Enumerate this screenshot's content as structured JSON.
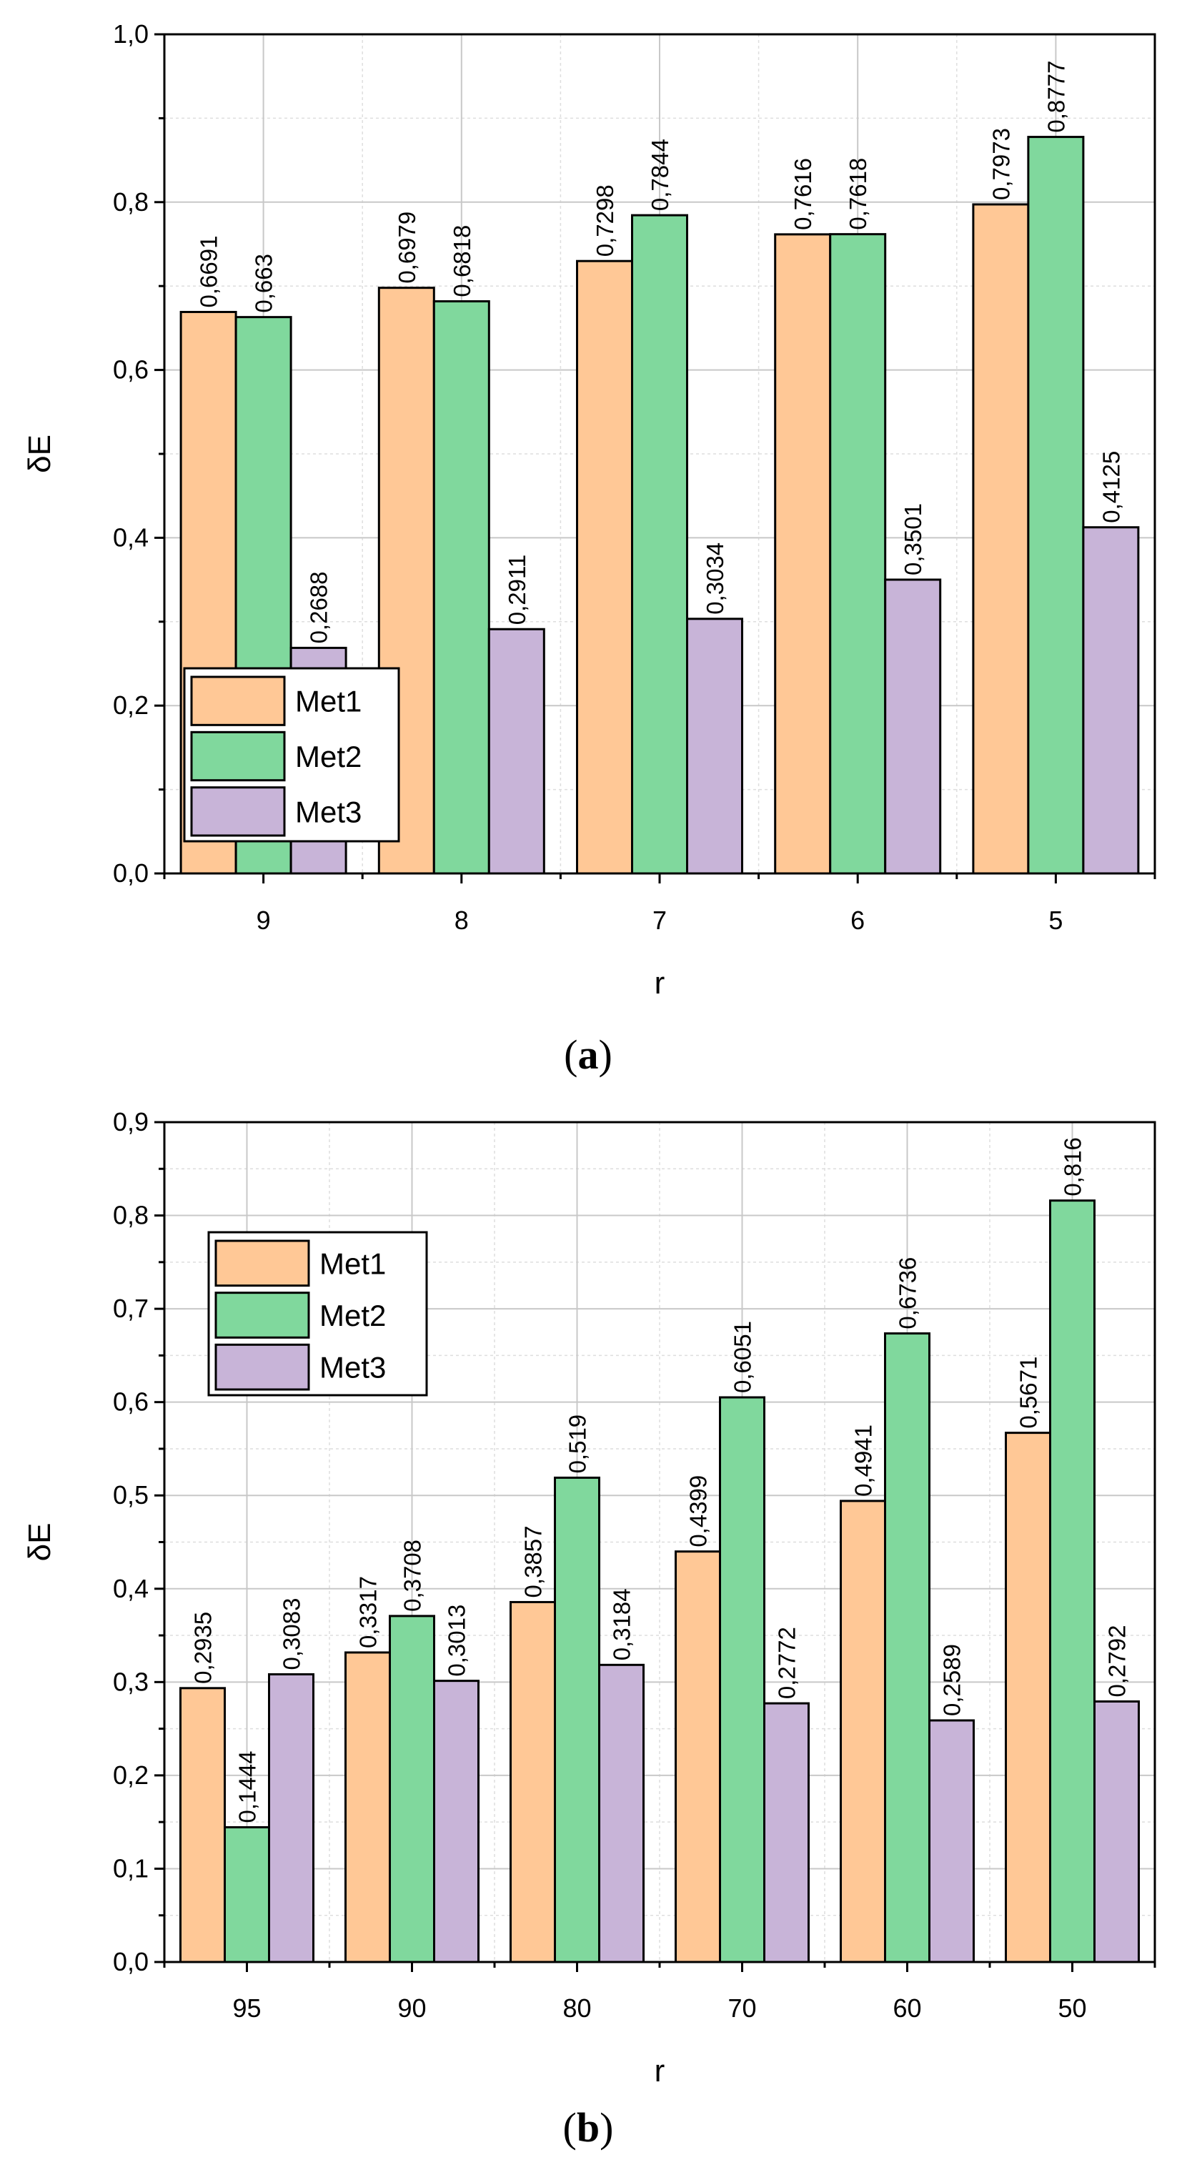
{
  "colors": {
    "Met1": "#ffc896",
    "Met2": "#80d89d",
    "Met3": "#c8b4d8",
    "grid": "#c8c8c8"
  },
  "chart_data": [
    {
      "type": "bar",
      "panel_label": [
        "(",
        "a",
        ")"
      ],
      "categories": [
        "9",
        "8",
        "7",
        "6",
        "5"
      ],
      "series": [
        {
          "name": "Met1",
          "values": [
            0.6691,
            0.6979,
            0.7298,
            0.7616,
            0.7973
          ],
          "labels": [
            "0,6691",
            "0,6979",
            "0,7298",
            "0,7616",
            "0,7973"
          ]
        },
        {
          "name": "Met2",
          "values": [
            0.663,
            0.6818,
            0.7844,
            0.7618,
            0.8777
          ],
          "labels": [
            "0,663",
            "0,6818",
            "0,7844",
            "0,7618",
            "0,8777"
          ]
        },
        {
          "name": "Met3",
          "values": [
            0.2688,
            0.2911,
            0.3034,
            0.3501,
            0.4125
          ],
          "labels": [
            "0,2688",
            "0,2911",
            "0,3034",
            "0,3501",
            "0,4125"
          ]
        }
      ],
      "xlabel": "r",
      "ylabel": "δE",
      "ylim": [
        0,
        1.0
      ],
      "yticks": [
        0,
        0.2,
        0.4,
        0.6,
        0.8,
        1.0
      ],
      "ytick_labels": [
        "0,0",
        "0,2",
        "0,4",
        "0,6",
        "0,8",
        "1,0"
      ],
      "grid": true,
      "legend_entries": [
        "Met1",
        "Met2",
        "Met3"
      ],
      "legend_position": "bottom-left"
    },
    {
      "type": "bar",
      "panel_label": [
        "(",
        "b",
        ")"
      ],
      "categories": [
        "95",
        "90",
        "80",
        "70",
        "60",
        "50"
      ],
      "series": [
        {
          "name": "Met1",
          "values": [
            0.2935,
            0.3317,
            0.3857,
            0.4399,
            0.4941,
            0.5671
          ],
          "labels": [
            "0,2935",
            "0,3317",
            "0,3857",
            "0,4399",
            "0,4941",
            "0,5671"
          ]
        },
        {
          "name": "Met2",
          "values": [
            0.1444,
            0.3708,
            0.519,
            0.6051,
            0.6736,
            0.816
          ],
          "labels": [
            "0,1444",
            "0,3708",
            "0,519",
            "0,6051",
            "0,6736",
            "0,816"
          ]
        },
        {
          "name": "Met3",
          "values": [
            0.3083,
            0.3013,
            0.3184,
            0.2772,
            0.2589,
            0.2792
          ],
          "labels": [
            "0,3083",
            "0,3013",
            "0,3184",
            "0,2772",
            "0,2589",
            "0,2792"
          ]
        }
      ],
      "xlabel": "r",
      "ylabel": "δE",
      "ylim": [
        0,
        0.9
      ],
      "yticks": [
        0,
        0.1,
        0.2,
        0.3,
        0.4,
        0.5,
        0.6,
        0.7,
        0.8,
        0.9
      ],
      "ytick_labels": [
        "0,0",
        "0,1",
        "0,2",
        "0,3",
        "0,4",
        "0,5",
        "0,6",
        "0,7",
        "0,8",
        "0,9"
      ],
      "grid": true,
      "legend_entries": [
        "Met1",
        "Met2",
        "Met3"
      ],
      "legend_position": "top-left"
    }
  ]
}
